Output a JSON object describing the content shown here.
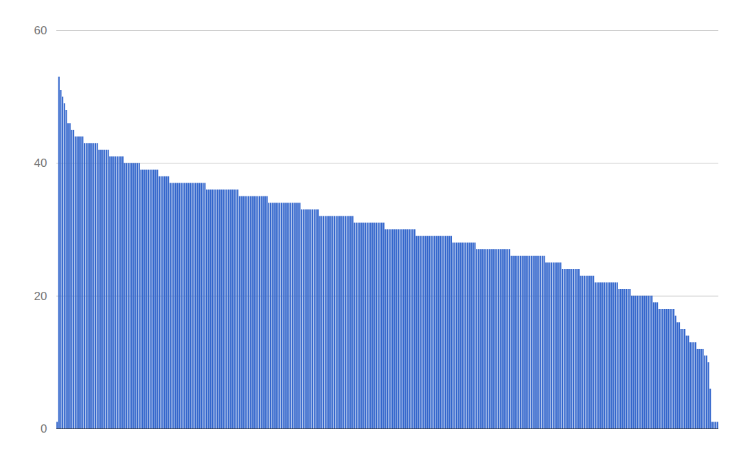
{
  "chart_data": {
    "type": "bar",
    "categories": [
      null,
      null,
      null,
      null,
      null,
      null,
      null,
      null,
      null,
      null,
      null,
      null,
      null,
      null,
      null,
      null,
      null,
      null,
      null,
      null,
      null,
      null,
      null,
      null,
      null,
      null,
      null,
      null,
      null,
      null,
      null,
      null,
      null,
      null,
      null,
      null,
      null,
      null,
      null,
      null,
      null,
      null,
      null,
      null,
      null,
      null,
      null,
      null,
      null,
      null,
      null,
      null,
      null,
      null,
      null,
      null,
      null,
      null,
      null,
      null,
      null,
      null,
      null,
      null,
      null,
      null,
      null,
      null,
      null,
      null,
      null,
      null,
      null,
      null,
      null,
      null,
      null,
      null,
      null,
      null,
      null,
      null,
      null,
      null,
      null,
      null,
      null,
      null,
      null,
      null,
      null,
      null,
      null,
      null,
      null,
      null,
      null,
      null,
      null,
      null,
      null,
      null,
      null,
      null,
      null,
      null,
      null,
      null,
      null,
      null,
      null,
      null,
      null,
      null,
      null,
      null,
      null,
      null,
      null,
      null,
      null,
      null,
      null,
      null,
      null,
      null,
      null,
      null,
      null,
      null,
      null,
      null,
      null,
      null,
      null,
      null,
      null,
      null,
      null,
      null,
      null,
      null,
      null,
      null,
      null,
      null,
      null,
      null,
      null,
      null,
      null,
      null,
      null,
      null,
      null,
      null,
      null,
      null,
      null,
      null,
      null,
      null,
      null,
      null,
      null,
      null,
      null,
      null,
      null,
      null,
      null,
      null,
      null,
      null,
      null,
      null,
      null,
      null,
      null,
      null,
      null,
      null,
      null,
      null,
      null,
      null,
      null,
      null,
      null,
      null,
      null,
      null,
      null,
      null,
      null,
      null,
      null,
      null,
      null,
      null,
      null,
      null,
      null,
      null,
      null,
      null,
      null,
      null,
      null,
      null,
      null,
      null,
      null,
      null,
      null,
      null,
      null,
      null,
      null,
      null,
      null,
      null,
      null,
      null,
      null,
      null,
      null,
      null,
      null,
      null,
      null,
      null,
      null,
      null,
      null,
      null,
      null,
      null,
      null,
      null,
      null,
      null,
      null,
      null,
      null,
      null,
      null,
      null,
      null,
      null,
      null,
      null,
      null,
      null,
      null,
      null,
      null,
      null,
      null,
      null,
      null,
      null,
      null,
      null,
      null,
      null,
      null,
      null,
      null,
      null,
      null,
      null,
      null,
      null,
      null,
      null,
      null,
      null,
      null,
      null,
      null,
      null,
      null,
      null,
      null,
      null,
      null,
      null,
      null,
      null,
      null,
      null,
      null,
      null,
      null,
      null,
      null,
      null,
      null,
      null,
      null,
      null,
      null,
      null,
      null,
      null,
      null,
      null,
      null,
      null,
      null,
      null,
      null,
      null,
      null,
      null,
      null,
      null,
      null,
      null,
      null,
      null,
      null,
      null,
      null,
      null,
      null,
      null,
      null,
      null,
      null,
      null,
      null,
      null,
      null,
      null,
      null,
      null,
      null,
      null,
      null,
      null,
      null,
      null,
      null,
      null,
      null,
      null,
      null,
      null,
      null,
      null,
      null,
      null,
      null,
      null,
      null,
      null,
      null,
      null,
      null,
      null,
      null
    ],
    "values": [
      1,
      53,
      51,
      50,
      49,
      48,
      46,
      46,
      45,
      45,
      44,
      44,
      44,
      44,
      44,
      43,
      43,
      43,
      43,
      43,
      43,
      43,
      43,
      42,
      42,
      42,
      42,
      42,
      42,
      41,
      41,
      41,
      41,
      41,
      41,
      41,
      41,
      40,
      40,
      40,
      40,
      40,
      40,
      40,
      40,
      40,
      39,
      39,
      39,
      39,
      39,
      39,
      39,
      39,
      39,
      39,
      38,
      38,
      38,
      38,
      38,
      38,
      37,
      37,
      37,
      37,
      37,
      37,
      37,
      37,
      37,
      37,
      37,
      37,
      37,
      37,
      37,
      37,
      37,
      37,
      37,
      37,
      36,
      36,
      36,
      36,
      36,
      36,
      36,
      36,
      36,
      36,
      36,
      36,
      36,
      36,
      36,
      36,
      36,
      36,
      35,
      35,
      35,
      35,
      35,
      35,
      35,
      35,
      35,
      35,
      35,
      35,
      35,
      35,
      35,
      35,
      34,
      34,
      34,
      34,
      34,
      34,
      34,
      34,
      34,
      34,
      34,
      34,
      34,
      34,
      34,
      34,
      34,
      34,
      33,
      33,
      33,
      33,
      33,
      33,
      33,
      33,
      33,
      33,
      32,
      32,
      32,
      32,
      32,
      32,
      32,
      32,
      32,
      32,
      32,
      32,
      32,
      32,
      32,
      32,
      32,
      32,
      32,
      31,
      31,
      31,
      31,
      31,
      31,
      31,
      31,
      31,
      31,
      31,
      31,
      31,
      31,
      31,
      31,
      31,
      30,
      30,
      30,
      30,
      30,
      30,
      30,
      30,
      30,
      30,
      30,
      30,
      30,
      30,
      30,
      30,
      30,
      29,
      29,
      29,
      29,
      29,
      29,
      29,
      29,
      29,
      29,
      29,
      29,
      29,
      29,
      29,
      29,
      29,
      29,
      29,
      29,
      28,
      28,
      28,
      28,
      28,
      28,
      28,
      28,
      28,
      28,
      28,
      28,
      28,
      27,
      27,
      27,
      27,
      27,
      27,
      27,
      27,
      27,
      27,
      27,
      27,
      27,
      27,
      27,
      27,
      27,
      27,
      27,
      26,
      26,
      26,
      26,
      26,
      26,
      26,
      26,
      26,
      26,
      26,
      26,
      26,
      26,
      26,
      26,
      26,
      26,
      26,
      25,
      25,
      25,
      25,
      25,
      25,
      25,
      25,
      25,
      24,
      24,
      24,
      24,
      24,
      24,
      24,
      24,
      24,
      24,
      23,
      23,
      23,
      23,
      23,
      23,
      23,
      23,
      22,
      22,
      22,
      22,
      22,
      22,
      22,
      22,
      22,
      22,
      22,
      22,
      22,
      21,
      21,
      21,
      21,
      21,
      21,
      21,
      20,
      20,
      20,
      20,
      20,
      20,
      20,
      20,
      20,
      20,
      20,
      20,
      19,
      19,
      19,
      18,
      18,
      18,
      18,
      18,
      18,
      18,
      18,
      18,
      17,
      16,
      16,
      15,
      15,
      15,
      14,
      14,
      13,
      13,
      13,
      13,
      12,
      12,
      12,
      12,
      11,
      11,
      10,
      6,
      1,
      1,
      1,
      1
    ],
    "color": "#3366cc",
    "ylim": [
      0,
      60
    ],
    "yticks": [
      0,
      20,
      40,
      60
    ],
    "grid": true,
    "tick_labels": "y"
  }
}
